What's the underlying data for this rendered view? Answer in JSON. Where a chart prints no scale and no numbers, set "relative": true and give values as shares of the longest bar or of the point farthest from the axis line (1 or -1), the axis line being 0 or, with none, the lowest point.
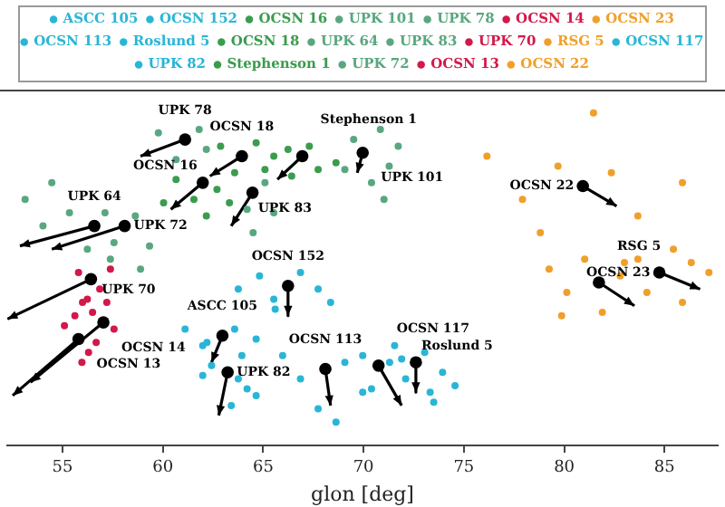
{
  "chart_data": {
    "type": "scatter",
    "xlabel": "glon [deg]",
    "relative": true,
    "xlim": [
      52.25,
      87.65
    ],
    "xticks": [
      55,
      60,
      65,
      70,
      75,
      80,
      85
    ],
    "grid": false,
    "legend": "top",
    "marker": "circle",
    "series": [
      {
        "name": "ASCC 105",
        "color": "#29b6d6",
        "x": [
          61.11,
          61.99,
          63.58,
          64.65,
          62.2,
          63.94
        ],
        "values": [
          0.35,
          0.3,
          0.35,
          0.32,
          0.31,
          0.27
        ]
      },
      {
        "name": "OCSN 152",
        "color": "#29b6d6",
        "x": [
          63.76,
          64.82,
          65.53,
          66.86,
          67.74,
          68.36,
          65.6
        ],
        "values": [
          0.47,
          0.51,
          0.44,
          0.52,
          0.47,
          0.43,
          0.41
        ]
      },
      {
        "name": "OCSN 16",
        "color": "#3b9c4e",
        "x": [
          60.66,
          61.55,
          62.7,
          60.04,
          62.17,
          63.32
        ],
        "values": [
          0.8,
          0.74,
          0.77,
          0.73,
          0.69,
          0.73
        ]
      },
      {
        "name": "UPK 101",
        "color": "#5aa77f",
        "x": [
          69.51,
          70.84,
          71.28,
          70.4,
          71.73,
          69.07,
          71.02
        ],
        "values": [
          0.92,
          0.95,
          0.84,
          0.79,
          0.9,
          0.83,
          0.74
        ]
      },
      {
        "name": "UPK 78",
        "color": "#5aa77f",
        "x": [
          59.78,
          60.66,
          61.81,
          62.17
        ],
        "values": [
          0.94,
          0.86,
          0.95,
          0.89
        ]
      },
      {
        "name": "OCSN 14",
        "color": "#d1194a",
        "x": [
          56.5,
          57.21,
          57.57,
          56.0
        ],
        "values": [
          0.4,
          0.43,
          0.35,
          0.43
        ]
      },
      {
        "name": "OCSN 23",
        "color": "#f0a02a",
        "x": [
          83.67,
          85.44,
          86.33,
          87.21,
          84.12,
          85.89
        ],
        "values": [
          0.56,
          0.59,
          0.55,
          0.52,
          0.46,
          0.43
        ]
      },
      {
        "name": "OCSN 113",
        "color": "#29b6d6",
        "x": [
          65.97,
          66.86,
          69.07,
          69.96,
          67.74,
          68.63
        ],
        "values": [
          0.27,
          0.2,
          0.25,
          0.16,
          0.11,
          0.07
        ]
      },
      {
        "name": "Roslund 5",
        "color": "#29b6d6",
        "x": [
          73.05,
          73.94,
          74.56,
          73.32,
          73.5
        ],
        "values": [
          0.28,
          0.22,
          0.18,
          0.16,
          0.13
        ]
      },
      {
        "name": "OCSN 18",
        "color": "#3b9c4e",
        "x": [
          62.88,
          64.65,
          65.09,
          63.58,
          65.53
        ],
        "values": [
          0.9,
          0.91,
          0.83,
          0.82,
          0.87
        ]
      },
      {
        "name": "UPK 64",
        "color": "#5aa77f",
        "x": [
          53.14,
          54.47,
          55.35,
          57.12,
          54.03,
          56.24
        ],
        "values": [
          0.74,
          0.79,
          0.7,
          0.7,
          0.66,
          0.59
        ]
      },
      {
        "name": "UPK 83",
        "color": "#5aa77f",
        "x": [
          64.2,
          65.09,
          65.53,
          64.5
        ],
        "values": [
          0.71,
          0.79,
          0.7,
          0.64
        ]
      },
      {
        "name": "UPK 70",
        "color": "#d1194a",
        "x": [
          55.8,
          56.86,
          56.24,
          57.39
        ],
        "values": [
          0.52,
          0.47,
          0.44,
          0.53
        ]
      },
      {
        "name": "RSG 5",
        "color": "#f0a02a",
        "x": [
          79.25,
          80.13,
          81.02,
          82.79,
          83.0,
          81.9,
          79.87
        ],
        "values": [
          0.53,
          0.46,
          0.56,
          0.51,
          0.55,
          0.4,
          0.39
        ]
      },
      {
        "name": "OCSN 117",
        "color": "#29b6d6",
        "x": [
          69.96,
          71.3,
          71.9,
          72.1,
          70.4,
          71.55
        ],
        "values": [
          0.27,
          0.25,
          0.26,
          0.2,
          0.17,
          0.3
        ]
      },
      {
        "name": "UPK 82",
        "color": "#29b6d6",
        "x": [
          62.43,
          63.76,
          64.2,
          64.65,
          63.41,
          61.99
        ],
        "values": [
          0.24,
          0.2,
          0.17,
          0.15,
          0.12,
          0.21
        ]
      },
      {
        "name": "Stephenson 1",
        "color": "#3b9c4e",
        "x": [
          66.24,
          67.3,
          67.74,
          68.63,
          66.42
        ],
        "values": [
          0.89,
          0.9,
          0.83,
          0.85,
          0.81
        ]
      },
      {
        "name": "UPK 72",
        "color": "#5aa77f",
        "x": [
          57.57,
          58.63,
          59.34,
          57.39,
          58.89
        ],
        "values": [
          0.61,
          0.69,
          0.6,
          0.56,
          0.53
        ]
      },
      {
        "name": "OCSN 13",
        "color": "#d1194a",
        "x": [
          55.62,
          56.3,
          55.1,
          56.68,
          55.97
        ],
        "values": [
          0.39,
          0.28,
          0.36,
          0.31,
          0.25
        ]
      },
      {
        "name": "OCSN 22",
        "color": "#f0a02a",
        "x": [
          81.46,
          76.15,
          77.92,
          79.69,
          82.35,
          83.67,
          78.81,
          85.89
        ],
        "values": [
          1.0,
          0.87,
          0.74,
          0.84,
          0.82,
          0.69,
          0.64,
          0.79
        ]
      },
      {
        "type": "line",
        "color": "#000000",
        "marker": "none",
        "x": [
          62.97,
          62.43,
          null,
          66.24,
          66.24,
          null,
          61.99,
          60.4,
          null,
          69.96,
          69.69,
          null,
          61.11,
          58.89,
          null,
          57.04,
          53.41,
          null,
          84.74,
          86.77,
          null,
          68.1,
          68.36,
          null,
          72.61,
          72.61,
          null,
          63.94,
          62.35,
          null,
          56.59,
          52.88,
          null,
          64.47,
          63.41,
          null,
          56.42,
          52.26,
          null,
          81.73,
          83.5,
          null,
          70.75,
          71.9,
          null,
          63.23,
          62.79,
          null,
          66.95,
          65.71,
          null,
          58.1,
          54.47,
          null,
          55.8,
          52.52,
          null,
          80.93,
          82.61
        ],
        "values": [
          0.33,
          0.25,
          null,
          0.48,
          0.39,
          null,
          0.79,
          0.71,
          null,
          0.88,
          0.82,
          null,
          0.92,
          0.87,
          null,
          0.37,
          0.19,
          null,
          0.52,
          0.47,
          null,
          0.23,
          0.12,
          null,
          0.25,
          0.16,
          null,
          0.87,
          0.81,
          null,
          0.66,
          0.6,
          null,
          0.76,
          0.66,
          null,
          0.5,
          0.38,
          null,
          0.49,
          0.42,
          null,
          0.24,
          0.12,
          null,
          0.22,
          0.09,
          null,
          0.87,
          0.8,
          null,
          0.66,
          0.59,
          null,
          0.32,
          0.15,
          null,
          0.78,
          0.72
        ]
      },
      {
        "color": "#000000",
        "x": [
          62.97,
          66.24,
          61.99,
          69.96,
          61.11,
          57.04,
          84.74,
          68.1,
          72.61,
          63.94,
          56.59,
          64.47,
          56.42,
          81.73,
          70.75,
          63.23,
          66.95,
          58.1,
          55.8,
          80.93
        ],
        "values": [
          0.33,
          0.48,
          0.79,
          0.88,
          0.92,
          0.37,
          0.52,
          0.23,
          0.25,
          0.87,
          0.66,
          0.76,
          0.5,
          0.49,
          0.24,
          0.22,
          0.87,
          0.66,
          0.32,
          0.78
        ]
      }
    ],
    "annotations": [
      {
        "text": "UPK 78",
        "x": 61.11,
        "y": 0.92
      },
      {
        "text": "OCSN 18",
        "x": 63.94,
        "y": 0.87
      },
      {
        "text": "OCSN 16",
        "x": 61.99,
        "y": 0.79
      },
      {
        "text": "Stephenson 1",
        "x": 66.95,
        "y": 0.87
      },
      {
        "text": "UPK 83",
        "x": 64.47,
        "y": 0.76
      },
      {
        "text": "UPK 64",
        "x": 56.59,
        "y": 0.66
      },
      {
        "text": "UPK 72",
        "x": 58.1,
        "y": 0.66
      },
      {
        "text": "UPK 101",
        "x": 69.96,
        "y": 0.88
      },
      {
        "text": "OCSN 22",
        "x": 80.93,
        "y": 0.78
      },
      {
        "text": "RSG 5",
        "x": 81.73,
        "y": 0.49
      },
      {
        "text": "OCSN 23",
        "x": 84.74,
        "y": 0.52
      },
      {
        "text": "UPK 70",
        "x": 56.42,
        "y": 0.5
      },
      {
        "text": "OCSN 14",
        "x": 57.04,
        "y": 0.37
      },
      {
        "text": "OCSN 13",
        "x": 55.8,
        "y": 0.32
      },
      {
        "text": "OCSN 152",
        "x": 66.24,
        "y": 0.48
      },
      {
        "text": "ASCC 105",
        "x": 62.97,
        "y": 0.33
      },
      {
        "text": "UPK 82",
        "x": 63.23,
        "y": 0.22
      },
      {
        "text": "OCSN 113",
        "x": 68.1,
        "y": 0.23
      },
      {
        "text": "OCSN 117",
        "x": 70.75,
        "y": 0.24
      },
      {
        "text": "Roslund 5",
        "x": 72.61,
        "y": 0.25
      }
    ]
  }
}
